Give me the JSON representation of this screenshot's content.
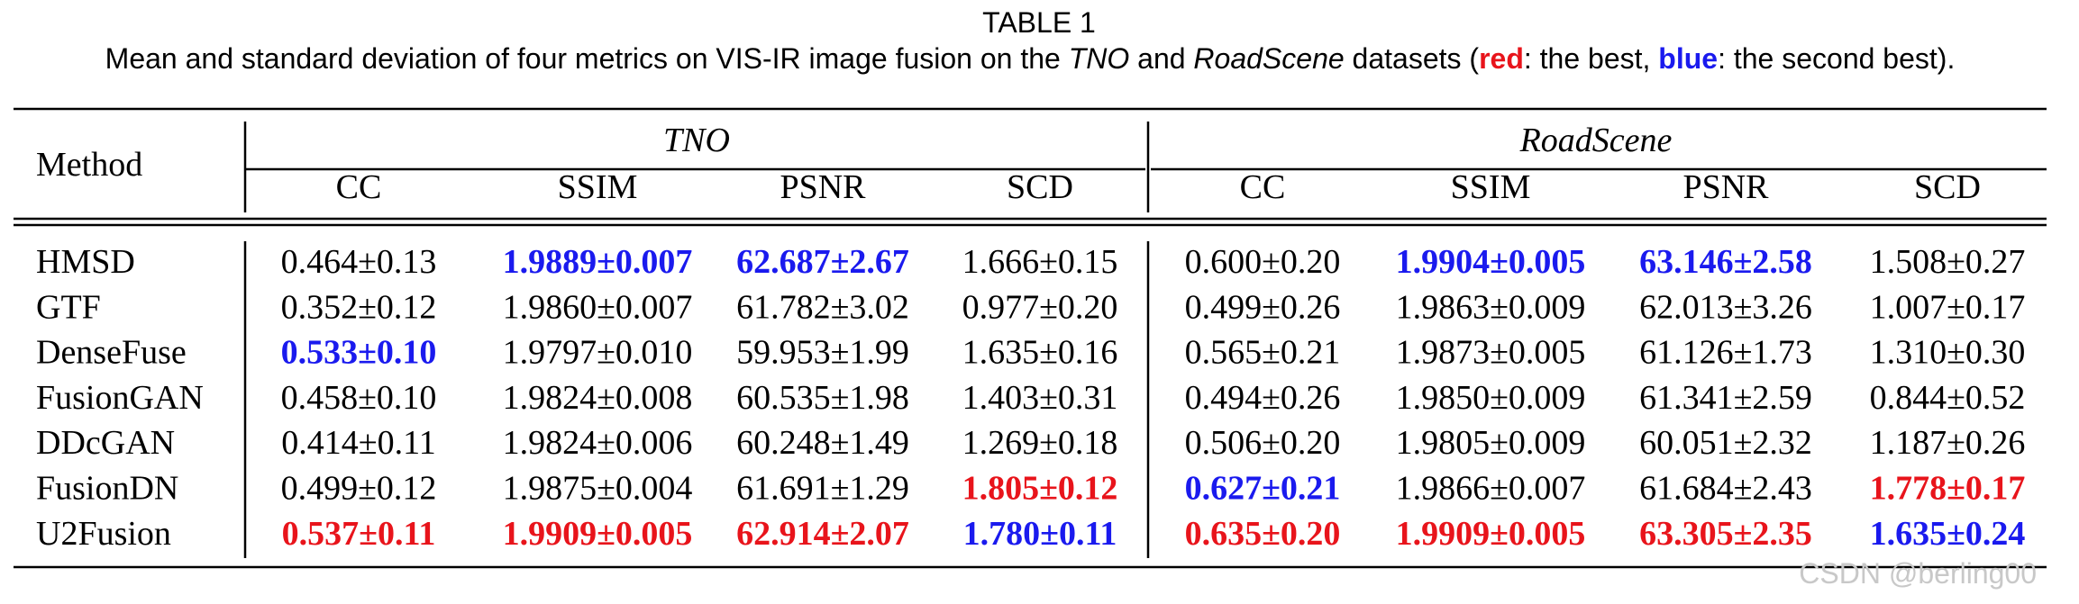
{
  "title": "TABLE 1",
  "caption": [
    "Mean and standard deviation of four metrics on VIS-IR image fusion on the ",
    "TNO",
    " and ",
    "RoadScene",
    " datasets (",
    "red",
    ": the best, ",
    "blue",
    ": the second best)."
  ],
  "table": {
    "method_header": "Method",
    "groups": [
      "TNO",
      "RoadScene"
    ],
    "columns": [
      "CC",
      "SSIM",
      "PSNR",
      "SCD",
      "CC",
      "SSIM",
      "PSNR",
      "SCD"
    ],
    "rows": [
      {
        "method": "HMSD",
        "cells": [
          "0.464±0.13",
          {
            "text": "1.9889±0.007",
            "color": "#1a1aee"
          },
          {
            "text": "62.687±2.67",
            "color": "#1a1aee"
          },
          "1.666±0.15",
          "0.600±0.20",
          {
            "text": "1.9904±0.005",
            "color": "#1a1aee"
          },
          {
            "text": "63.146±2.58",
            "color": "#1a1aee"
          },
          "1.508±0.27"
        ]
      },
      {
        "method": "GTF",
        "cells": [
          "0.352±0.12",
          "1.9860±0.007",
          "61.782±3.02",
          "0.977±0.20",
          "0.499±0.26",
          "1.9863±0.009",
          "62.013±3.26",
          "1.007±0.17"
        ]
      },
      {
        "method": "DenseFuse",
        "cells": [
          {
            "text": "0.533±0.10",
            "color": "#1a1aee"
          },
          "1.9797±0.010",
          "59.953±1.99",
          "1.635±0.16",
          "0.565±0.21",
          "1.9873±0.005",
          "61.126±1.73",
          "1.310±0.30"
        ]
      },
      {
        "method": "FusionGAN",
        "cells": [
          "0.458±0.10",
          "1.9824±0.008",
          "60.535±1.98",
          "1.403±0.31",
          "0.494±0.26",
          "1.9850±0.009",
          "61.341±2.59",
          "0.844±0.52"
        ]
      },
      {
        "method": "DDcGAN",
        "cells": [
          "0.414±0.11",
          "1.9824±0.006",
          "60.248±1.49",
          "1.269±0.18",
          "0.506±0.20",
          "1.9805±0.009",
          "60.051±2.32",
          "1.187±0.26"
        ]
      },
      {
        "method": "FusionDN",
        "cells": [
          "0.499±0.12",
          "1.9875±0.004",
          "61.691±1.29",
          {
            "text": "1.805±0.12",
            "color": "#e8141b"
          },
          {
            "text": "0.627±0.21",
            "color": "#1a1aee"
          },
          "1.9866±0.007",
          "61.684±2.43",
          {
            "text": "1.778±0.17",
            "color": "#e8141b"
          }
        ]
      },
      {
        "method": "U2Fusion",
        "cells": [
          {
            "text": "0.537±0.11",
            "color": "#e8141b"
          },
          {
            "text": "1.9909±0.005",
            "color": "#e8141b"
          },
          {
            "text": "62.914±2.07",
            "color": "#e8141b"
          },
          {
            "text": "1.780±0.11",
            "color": "#1a1aee"
          },
          {
            "text": "0.635±0.20",
            "color": "#e8141b"
          },
          {
            "text": "1.9909±0.005",
            "color": "#e8141b"
          },
          {
            "text": "63.305±2.35",
            "color": "#e8141b"
          },
          {
            "text": "1.635±0.24",
            "color": "#1a1aee"
          }
        ]
      }
    ]
  },
  "watermark": "CSDN @berling00"
}
